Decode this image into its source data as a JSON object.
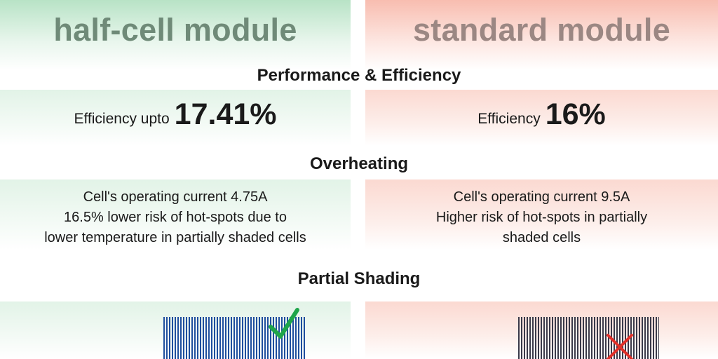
{
  "columns": {
    "left": {
      "title": "half-cell module"
    },
    "right": {
      "title": "standard module"
    }
  },
  "sections": {
    "performance": "Performance & Efficiency",
    "overheating": "Overheating",
    "shading": "Partial Shading"
  },
  "efficiency": {
    "left": {
      "label": "Efficiency upto",
      "value": "17.41%"
    },
    "right": {
      "label": "Efficiency",
      "value": "16%"
    }
  },
  "overheating": {
    "left": [
      "Cell's operating current 4.75A",
      "16.5% lower risk of hot-spots due to",
      "lower temperature in partially shaded cells"
    ],
    "right": [
      "Cell's operating current 9.5A",
      "Higher risk of hot-spots in partially",
      "shaded cells"
    ]
  },
  "shading": {
    "left": {
      "panel_color": "#1f4f9e",
      "mark_icon": "check-icon",
      "mark_color": "#1fa54a"
    },
    "right": {
      "panel_color": "#3a3a4a",
      "mark_icon": "cross-icon",
      "mark_color": "#e0312a"
    }
  }
}
